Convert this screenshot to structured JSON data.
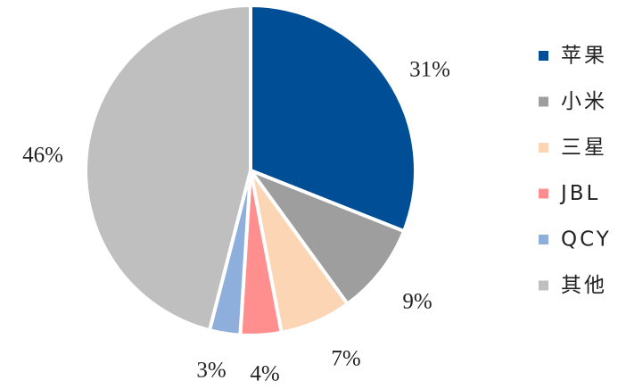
{
  "chart_data": {
    "type": "pie",
    "title": "",
    "slices": [
      {
        "label": "苹果",
        "value": 31,
        "display": "31%",
        "color": "#004f96"
      },
      {
        "label": "小米",
        "value": 9,
        "display": "9%",
        "color": "#9e9e9e"
      },
      {
        "label": "三星",
        "value": 7,
        "display": "7%",
        "color": "#fcd5b5"
      },
      {
        "label": "JBL",
        "value": 4,
        "display": "4%",
        "color": "#ff8f8f"
      },
      {
        "label": "QCY",
        "value": 3,
        "display": "3%",
        "color": "#8eaedc"
      },
      {
        "label": "其他",
        "value": 46,
        "display": "46%",
        "color": "#bfbfbf"
      }
    ],
    "legend": {
      "position": "right"
    },
    "start": "12 o'clock, clockwise"
  }
}
